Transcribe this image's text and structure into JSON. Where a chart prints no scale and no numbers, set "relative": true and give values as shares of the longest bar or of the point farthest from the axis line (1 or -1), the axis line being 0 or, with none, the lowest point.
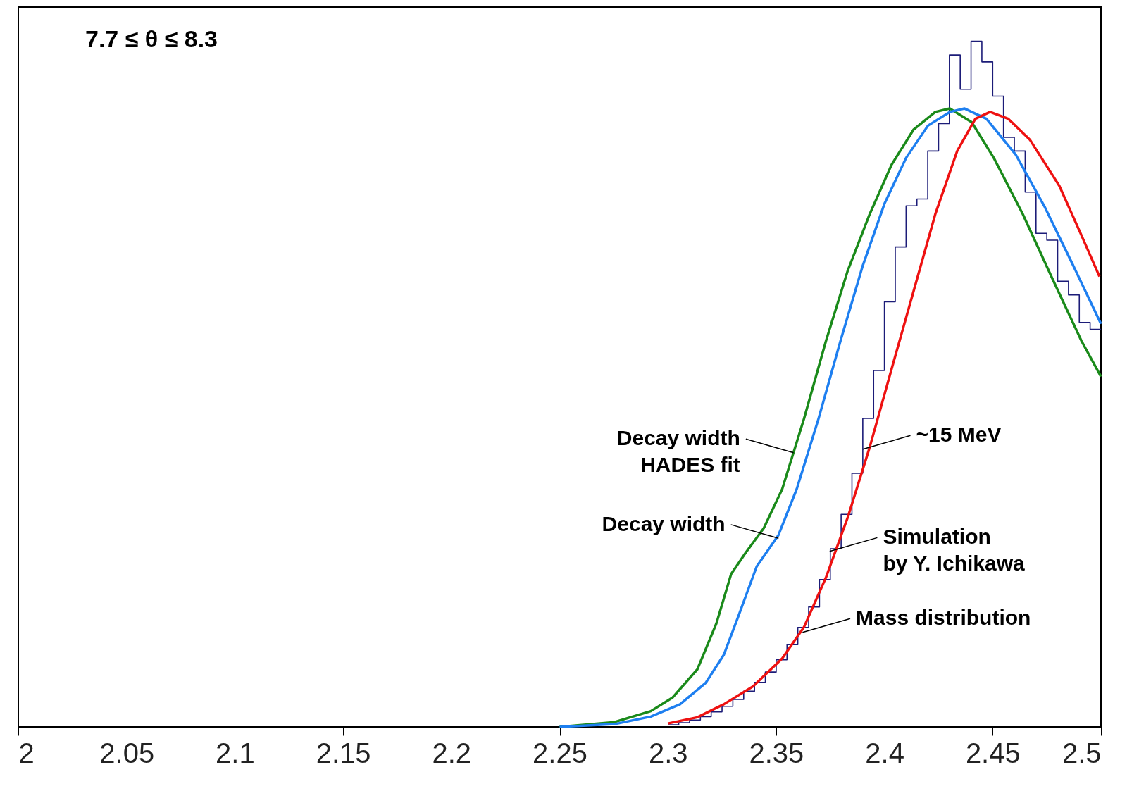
{
  "chart_data": {
    "type": "line",
    "relative": true,
    "xlim": [
      2,
      2.5
    ],
    "xticks": [
      2,
      2.05,
      2.1,
      2.15,
      2.2,
      2.25,
      2.3,
      2.35,
      2.4,
      2.45,
      2.5
    ],
    "annotations": [
      "7.7 ≤ θ ≤ 8.3",
      {
        "text": "Decay width\nHADES fit",
        "x": 2.358,
        "y": 0.4
      },
      {
        "text": "Decay width",
        "x": 2.3511,
        "y": 0.275
      },
      {
        "text": "Simulation\nby Y. Ichikawa",
        "x": 2.3747,
        "y": 0.256
      },
      {
        "text": "Mass distribution",
        "x": 2.3622,
        "y": 0.138
      },
      {
        "text": "~15 MeV",
        "x": 2.39,
        "y": 0.405
      }
    ],
    "series": [
      {
        "type": "step",
        "color": "#1c1c78",
        "x": [
          2.3,
          2.305,
          2.31,
          2.315,
          2.32,
          2.325,
          2.33,
          2.335,
          2.34,
          2.345,
          2.35,
          2.355,
          2.36,
          2.365,
          2.37,
          2.375,
          2.38,
          2.385,
          2.39,
          2.395,
          2.4,
          2.405,
          2.41,
          2.415,
          2.42,
          2.425,
          2.43,
          2.435,
          2.44,
          2.445,
          2.45,
          2.455,
          2.46,
          2.465,
          2.47,
          2.475,
          2.48,
          2.485,
          2.49,
          2.495,
          2.5
        ],
        "values": [
          0.003,
          0.006,
          0.01,
          0.015,
          0.022,
          0.03,
          0.04,
          0.052,
          0.065,
          0.08,
          0.098,
          0.12,
          0.145,
          0.175,
          0.215,
          0.26,
          0.31,
          0.37,
          0.45,
          0.52,
          0.62,
          0.7,
          0.76,
          0.77,
          0.84,
          0.88,
          0.98,
          0.93,
          1.0,
          0.97,
          0.92,
          0.86,
          0.84,
          0.78,
          0.72,
          0.71,
          0.65,
          0.63,
          0.59,
          0.58,
          0.58
        ]
      },
      {
        "color": "#1a8a1a",
        "x": [
          2.25,
          2.2753,
          2.2921,
          2.3022,
          2.3136,
          2.3224,
          2.3292,
          2.3359,
          2.3443,
          2.3528,
          2.3629,
          2.373,
          2.3831,
          2.3932,
          2.4033,
          2.4134,
          2.4235,
          2.4302,
          2.4403,
          2.4505,
          2.4639,
          2.4774,
          2.491,
          2.5
        ],
        "values": [
          0,
          0.007,
          0.023,
          0.043,
          0.084,
          0.151,
          0.223,
          0.254,
          0.29,
          0.347,
          0.45,
          0.563,
          0.666,
          0.748,
          0.82,
          0.871,
          0.897,
          0.902,
          0.882,
          0.83,
          0.748,
          0.655,
          0.563,
          0.511
        ]
      },
      {
        "color": "#1e7ff0",
        "x": [
          2.25,
          2.2753,
          2.2921,
          2.3056,
          2.3174,
          2.3258,
          2.3326,
          2.341,
          2.3511,
          2.3595,
          2.3696,
          2.3797,
          2.3898,
          2.4,
          2.41,
          2.4201,
          2.4302,
          2.437,
          2.4471,
          2.4606,
          2.4741,
          2.4875,
          2.5
        ],
        "values": [
          0,
          0.004,
          0.015,
          0.033,
          0.064,
          0.105,
          0.162,
          0.234,
          0.28,
          0.347,
          0.45,
          0.563,
          0.671,
          0.763,
          0.83,
          0.877,
          0.897,
          0.902,
          0.887,
          0.835,
          0.758,
          0.671,
          0.588
        ]
      },
      {
        "color": "#ee1111",
        "x": [
          2.3,
          2.3136,
          2.3258,
          2.3393,
          2.3528,
          2.3629,
          2.373,
          2.3831,
          2.3932,
          2.4033,
          2.4134,
          2.4235,
          2.4336,
          2.442,
          2.4488,
          2.4572,
          2.4673,
          2.4808,
          2.491,
          2.4993
        ],
        "values": [
          0.005,
          0.014,
          0.033,
          0.059,
          0.1,
          0.146,
          0.218,
          0.306,
          0.408,
          0.522,
          0.635,
          0.748,
          0.84,
          0.887,
          0.897,
          0.887,
          0.856,
          0.789,
          0.717,
          0.657
        ]
      }
    ]
  }
}
